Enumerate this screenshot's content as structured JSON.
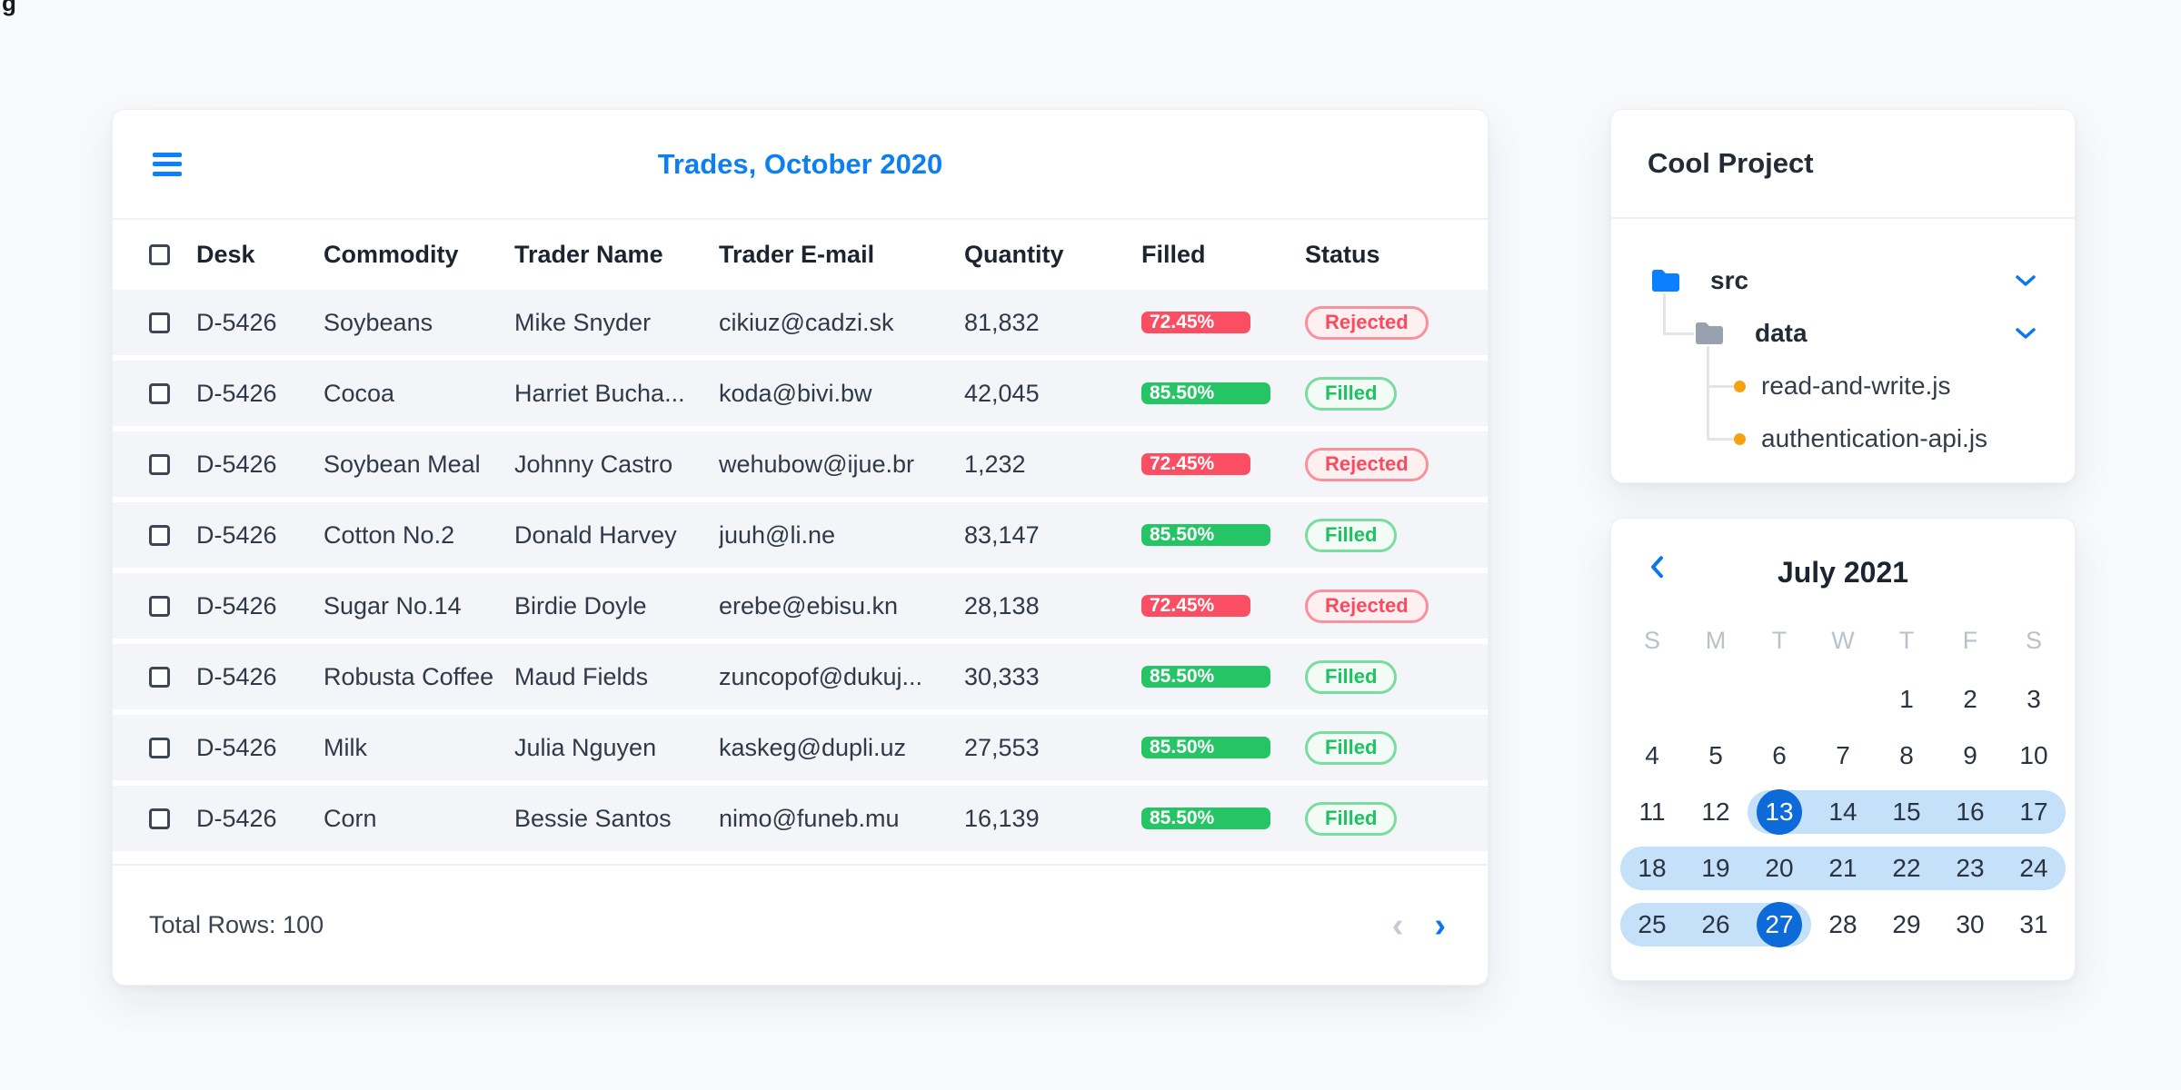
{
  "artifact": "g",
  "colors": {
    "accent_blue": "#0b76f0",
    "title_blue": "#0c7ff2",
    "progress_red": "#fb4e63",
    "progress_green": "#25c565",
    "status_red": "#f94a5e",
    "status_green": "#1fc261",
    "range_blue": "#c5e0f9",
    "selected_blue": "#0d6ad9",
    "folder_blue": "#0b80ff",
    "folder_gray": "#98a2ae",
    "file_dot_orange": "#f2a30f"
  },
  "trades_table": {
    "title": "Trades, October 2020",
    "columns": [
      "Desk",
      "Commodity",
      "Trader Name",
      "Trader E-mail",
      "Quantity",
      "Filled",
      "Status"
    ],
    "rows": [
      {
        "desk": "D-5426",
        "commodity": "Soybeans",
        "trader_name": "Mike Snyder",
        "trader_email": "cikiuz@cadzi.sk",
        "quantity": "81,832",
        "filled_pct": 72.45,
        "filled_label": "72.45%",
        "status": "Rejected"
      },
      {
        "desk": "D-5426",
        "commodity": "Cocoa",
        "trader_name": "Harriet Bucha...",
        "trader_email": "koda@bivi.bw",
        "quantity": "42,045",
        "filled_pct": 85.5,
        "filled_label": "85.50%",
        "status": "Filled"
      },
      {
        "desk": "D-5426",
        "commodity": "Soybean Meal",
        "trader_name": "Johnny Castro",
        "trader_email": "wehubow@ijue.br",
        "quantity": "1,232",
        "filled_pct": 72.45,
        "filled_label": "72.45%",
        "status": "Rejected"
      },
      {
        "desk": "D-5426",
        "commodity": "Cotton No.2",
        "trader_name": "Donald Harvey",
        "trader_email": "juuh@li.ne",
        "quantity": "83,147",
        "filled_pct": 85.5,
        "filled_label": "85.50%",
        "status": "Filled"
      },
      {
        "desk": "D-5426",
        "commodity": "Sugar No.14",
        "trader_name": "Birdie Doyle",
        "trader_email": "erebe@ebisu.kn",
        "quantity": "28,138",
        "filled_pct": 72.45,
        "filled_label": "72.45%",
        "status": "Rejected"
      },
      {
        "desk": "D-5426",
        "commodity": "Robusta Coffee",
        "trader_name": "Maud Fields",
        "trader_email": "zuncopof@dukuj...",
        "quantity": "30,333",
        "filled_pct": 85.5,
        "filled_label": "85.50%",
        "status": "Filled"
      },
      {
        "desk": "D-5426",
        "commodity": "Milk",
        "trader_name": "Julia Nguyen",
        "trader_email": "kaskeg@dupli.uz",
        "quantity": "27,553",
        "filled_pct": 85.5,
        "filled_label": "85.50%",
        "status": "Filled"
      },
      {
        "desk": "D-5426",
        "commodity": "Corn",
        "trader_name": "Bessie Santos",
        "trader_email": "nimo@funeb.mu",
        "quantity": "16,139",
        "filled_pct": 85.5,
        "filled_label": "85.50%",
        "status": "Filled"
      }
    ],
    "footer": {
      "total_rows_label": "Total Rows: 100",
      "prev_icon": "‹",
      "next_icon": "›"
    }
  },
  "project_panel": {
    "title": "Cool Project",
    "tree": {
      "src": {
        "label": "src",
        "type": "folder",
        "expanded": true
      },
      "data": {
        "label": "data",
        "type": "folder",
        "expanded": true
      },
      "file1": {
        "label": "read-and-write.js",
        "type": "file"
      },
      "file2": {
        "label": "authentication-api.js",
        "type": "file"
      }
    }
  },
  "calendar": {
    "title": "July 2021",
    "weekdays": [
      "S",
      "M",
      "T",
      "W",
      "T",
      "F",
      "S"
    ],
    "weeks": [
      [
        null,
        null,
        null,
        null,
        1,
        2,
        3
      ],
      [
        4,
        5,
        6,
        7,
        8,
        9,
        10
      ],
      [
        11,
        12,
        13,
        14,
        15,
        16,
        17
      ],
      [
        18,
        19,
        20,
        21,
        22,
        23,
        24
      ],
      [
        25,
        26,
        27,
        28,
        29,
        30,
        31
      ]
    ],
    "range_start": 13,
    "range_end": 27,
    "selected_days": [
      13,
      27
    ]
  }
}
